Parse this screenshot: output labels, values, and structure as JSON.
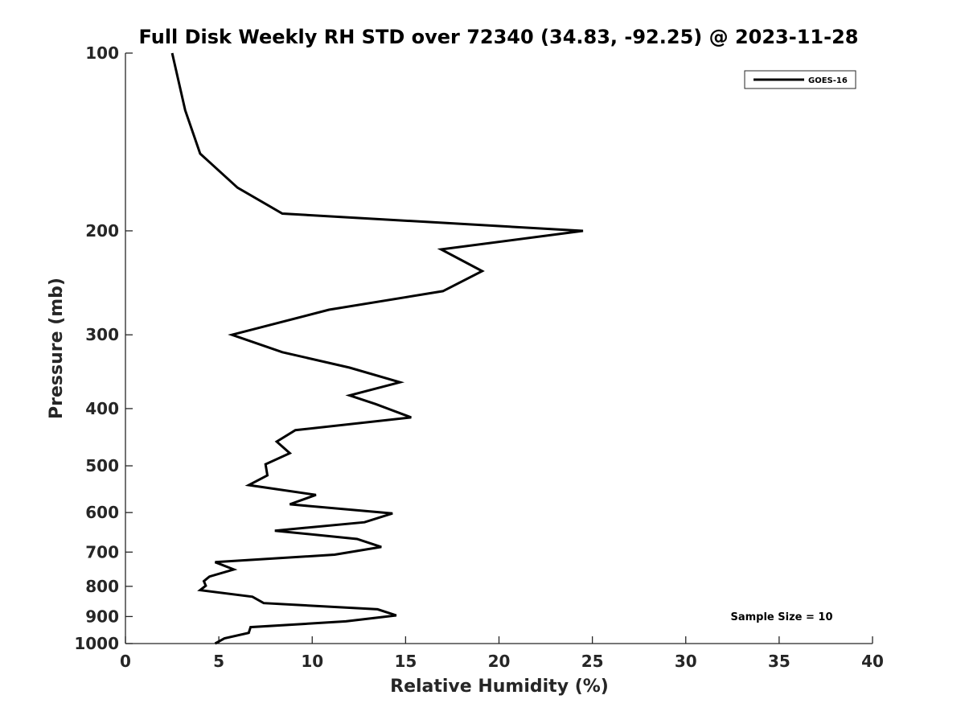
{
  "chart_data": {
    "type": "line",
    "title": "Full Disk Weekly RH STD over 72340 (34.83, -92.25) @ 2023-11-28",
    "xlabel": "Relative Humidity (%)",
    "ylabel": "Pressure (mb)",
    "xlim": [
      0,
      40
    ],
    "ylim": [
      1000,
      100
    ],
    "y_scale": "log",
    "y_reversed": true,
    "grid": false,
    "legend_position": "top-right",
    "x_ticks": [
      0,
      5,
      10,
      15,
      20,
      25,
      30,
      35,
      40
    ],
    "x_tick_labels": [
      "0",
      "5",
      "10",
      "15",
      "20",
      "25",
      "30",
      "35",
      "40"
    ],
    "y_ticks": [
      100,
      200,
      300,
      400,
      500,
      600,
      700,
      800,
      900,
      1000
    ],
    "y_tick_labels": [
      "100",
      "200",
      "300",
      "400",
      "500",
      "600",
      "700",
      "800",
      "900",
      "1000"
    ],
    "annotation": "Sample Size = 10",
    "series": [
      {
        "name": "GOES-16",
        "color": "#000000",
        "points": [
          [
            2.5,
            100
          ],
          [
            3.2,
            125
          ],
          [
            4.0,
            148
          ],
          [
            6.0,
            169
          ],
          [
            8.4,
            187
          ],
          [
            24.5,
            200
          ],
          [
            16.9,
            215
          ],
          [
            19.1,
            234
          ],
          [
            17.0,
            253
          ],
          [
            10.9,
            272
          ],
          [
            5.7,
            300
          ],
          [
            8.4,
            321
          ],
          [
            12.0,
            341
          ],
          [
            14.7,
            361
          ],
          [
            12.0,
            380
          ],
          [
            13.4,
            393
          ],
          [
            15.3,
            414
          ],
          [
            9.1,
            435
          ],
          [
            8.1,
            455
          ],
          [
            8.8,
            476
          ],
          [
            7.5,
            497
          ],
          [
            7.6,
            519
          ],
          [
            6.6,
            539
          ],
          [
            10.2,
            560
          ],
          [
            8.8,
            581
          ],
          [
            14.3,
            602
          ],
          [
            12.8,
            623
          ],
          [
            8.0,
            644
          ],
          [
            12.4,
            665
          ],
          [
            13.7,
            686
          ],
          [
            11.2,
            707
          ],
          [
            4.8,
            728
          ],
          [
            5.8,
            749
          ],
          [
            4.5,
            770
          ],
          [
            4.2,
            784
          ],
          [
            4.3,
            798
          ],
          [
            4.0,
            812
          ],
          [
            6.8,
            833
          ],
          [
            7.4,
            854
          ],
          [
            13.5,
            875
          ],
          [
            14.5,
            896
          ],
          [
            11.8,
            917
          ],
          [
            6.7,
            938
          ],
          [
            6.6,
            959
          ],
          [
            5.3,
            980
          ],
          [
            4.8,
            1000
          ]
        ]
      }
    ]
  }
}
